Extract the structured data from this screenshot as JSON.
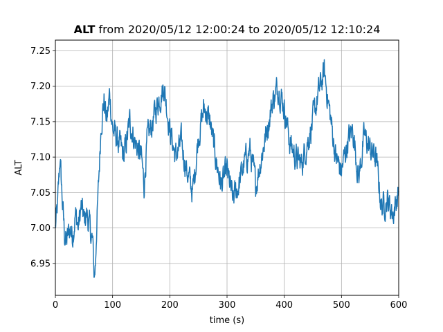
{
  "chart_data": {
    "type": "line",
    "title_bold": "ALT",
    "title_rest": "from 2020/05/12 12:00:24 to 2020/05/12 12:10:24",
    "xlabel": "time (s)",
    "ylabel": "ALT",
    "xlim": [
      0,
      600
    ],
    "ylim": [
      6.905,
      7.265
    ],
    "xticks": [
      0,
      100,
      200,
      300,
      400,
      500,
      600
    ],
    "yticks": [
      6.95,
      7.0,
      7.05,
      7.1,
      7.15,
      7.2,
      7.25
    ],
    "ytick_labels": [
      "6.95",
      "7.00",
      "7.05",
      "7.10",
      "7.15",
      "7.20",
      "7.25"
    ],
    "grid": true,
    "line_color": "#1f77b4",
    "series": [
      {
        "x": [
          0,
          4,
          8,
          12,
          16,
          20,
          25,
          30,
          35,
          40,
          45,
          50,
          55,
          60,
          65,
          68,
          70,
          72,
          75,
          80,
          85,
          90,
          95,
          100,
          110,
          120,
          130,
          140,
          150,
          155,
          160,
          170,
          180,
          190,
          200,
          210,
          220,
          230,
          240,
          250,
          260,
          270,
          280,
          290,
          300,
          310,
          320,
          330,
          340,
          350,
          360,
          370,
          380,
          390,
          400,
          410,
          420,
          430,
          440,
          450,
          460,
          470,
          480,
          490,
          500,
          510,
          520,
          530,
          540,
          550,
          560,
          570,
          580,
          590,
          600
        ],
        "y": [
          7.0,
          7.03,
          7.1,
          7.04,
          6.99,
          6.98,
          7.0,
          6.99,
          7.02,
          7.0,
          7.03,
          7.01,
          7.02,
          7.0,
          6.98,
          6.93,
          6.95,
          7.0,
          7.05,
          7.15,
          7.18,
          7.15,
          7.19,
          7.14,
          7.12,
          7.1,
          7.15,
          7.12,
          7.1,
          7.06,
          7.12,
          7.15,
          7.18,
          7.2,
          7.14,
          7.1,
          7.12,
          7.08,
          7.05,
          7.13,
          7.17,
          7.15,
          7.1,
          7.06,
          7.08,
          7.04,
          7.06,
          7.09,
          7.11,
          7.06,
          7.1,
          7.14,
          7.18,
          7.2,
          7.17,
          7.12,
          7.1,
          7.09,
          7.12,
          7.15,
          7.19,
          7.22,
          7.16,
          7.1,
          7.08,
          7.12,
          7.14,
          7.07,
          7.13,
          7.11,
          7.1,
          7.03,
          7.04,
          7.02,
          7.05
        ]
      }
    ]
  }
}
